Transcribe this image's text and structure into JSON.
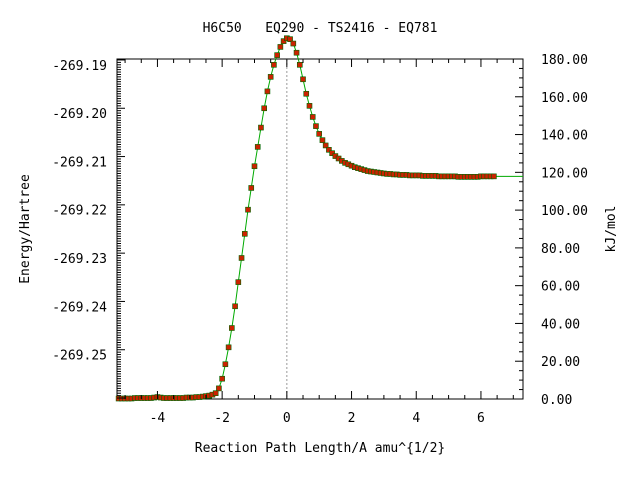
{
  "chart_data": {
    "type": "scatter",
    "title": "H6C50   EQ290 - TS2416 - EQ781",
    "xlabel": "Reaction Path Length/A amu^{1/2}",
    "ylabel": "Energy/Hartree",
    "y2label": "kJ/mol",
    "xlim": [
      -5.25,
      7.3
    ],
    "ylim": [
      -269.2592,
      -269.1888
    ],
    "y2lim": [
      0,
      180
    ],
    "xticks": [
      -4,
      -2,
      0,
      2,
      4,
      6
    ],
    "xtick_labels": [
      "-4",
      "-2",
      "0",
      "2",
      "4",
      "6"
    ],
    "yticks": [
      -269.19,
      -269.2,
      -269.21,
      -269.22,
      -269.23,
      -269.24,
      -269.25
    ],
    "ytick_labels": [
      "-269.19",
      "-269.20",
      "-269.21",
      "-269.22",
      "-269.23",
      "-269.24",
      "-269.25"
    ],
    "y2ticks": [
      0,
      20,
      40,
      60,
      80,
      100,
      120,
      140,
      160,
      180
    ],
    "y2tick_labels": [
      "0.00",
      "20.00",
      "40.00",
      "60.00",
      "80.00",
      "100.00",
      "120.00",
      "140.00",
      "160.00",
      "180.00"
    ],
    "ts_marker_x": 0,
    "grid": false,
    "legend": "none",
    "colors": {
      "points": "#cc2200",
      "line": "#00aa00",
      "ts_line": "#999999",
      "axis": "#000000"
    },
    "series": [
      {
        "values_x": [
          -5.2,
          -5.1,
          -5.0,
          -4.9,
          -4.8,
          -4.7,
          -4.6,
          -4.5,
          -4.4,
          -4.3,
          -4.2,
          -4.1,
          -4.0,
          -3.9,
          -3.8,
          -3.7,
          -3.6,
          -3.5,
          -3.4,
          -3.3,
          -3.2,
          -3.1,
          -3.0,
          -2.9,
          -2.8,
          -2.7,
          -2.6,
          -2.5,
          -2.4,
          -2.3,
          -2.2,
          -2.1,
          -2.0,
          -1.9,
          -1.8,
          -1.7,
          -1.6,
          -1.5,
          -1.4,
          -1.3,
          -1.2,
          -1.1,
          -1.0,
          -0.9,
          -0.8,
          -0.7,
          -0.6,
          -0.5,
          -0.4,
          -0.3,
          -0.2,
          -0.1,
          0.0,
          0.1,
          0.2,
          0.3,
          0.4,
          0.5,
          0.6,
          0.7,
          0.8,
          0.9,
          1.0,
          1.1,
          1.2,
          1.3,
          1.4,
          1.5,
          1.6,
          1.7,
          1.8,
          1.9,
          2.0,
          2.1,
          2.2,
          2.3,
          2.4,
          2.5,
          2.6,
          2.7,
          2.8,
          2.9,
          3.0,
          3.1,
          3.2,
          3.3,
          3.4,
          3.5,
          3.6,
          3.7,
          3.8,
          3.9,
          4.0,
          4.1,
          4.2,
          4.3,
          4.4,
          4.5,
          4.6,
          4.7,
          4.8,
          4.9,
          5.0,
          5.1,
          5.2,
          5.3,
          5.4,
          5.5,
          5.6,
          5.7,
          5.8,
          5.9,
          6.0,
          6.1,
          6.2,
          6.3,
          6.4
        ],
        "values_y": [
          -269.2591,
          -269.2591,
          -269.2591,
          -269.2591,
          -269.2591,
          -269.259,
          -269.259,
          -269.259,
          -269.259,
          -269.259,
          -269.259,
          -269.2589,
          -269.2588,
          -269.2589,
          -269.259,
          -269.259,
          -269.259,
          -269.259,
          -269.259,
          -269.259,
          -269.259,
          -269.2589,
          -269.2589,
          -269.2589,
          -269.2588,
          -269.2588,
          -269.2587,
          -269.2586,
          -269.2585,
          -269.2583,
          -269.258,
          -269.257,
          -269.255,
          -269.252,
          -269.2485,
          -269.2445,
          -269.24,
          -269.235,
          -269.23,
          -269.225,
          -269.22,
          -269.2155,
          -269.211,
          -269.207,
          -269.203,
          -269.199,
          -269.1955,
          -269.1925,
          -269.19,
          -269.188,
          -269.1863,
          -269.1851,
          -269.1845,
          -269.1847,
          -269.1856,
          -269.1875,
          -269.19,
          -269.193,
          -269.196,
          -269.1985,
          -269.2008,
          -269.2027,
          -269.2043,
          -269.2056,
          -269.2067,
          -269.2076,
          -269.2083,
          -269.2089,
          -269.2094,
          -269.2099,
          -269.2103,
          -269.2106,
          -269.2109,
          -269.2112,
          -269.2114,
          -269.2116,
          -269.2118,
          -269.212,
          -269.2121,
          -269.2122,
          -269.2123,
          -269.2124,
          -269.2125,
          -269.2126,
          -269.2126,
          -269.2127,
          -269.2127,
          -269.2128,
          -269.2128,
          -269.2128,
          -269.2129,
          -269.2129,
          -269.2129,
          -269.2129,
          -269.213,
          -269.213,
          -269.213,
          -269.213,
          -269.213,
          -269.2131,
          -269.2131,
          -269.2131,
          -269.2131,
          -269.2131,
          -269.2131,
          -269.2132,
          -269.2132,
          -269.2132,
          -269.2132,
          -269.2132,
          -269.2132,
          -269.2132,
          -269.2131,
          -269.2131,
          -269.2131,
          -269.2131,
          -269.2131
        ],
        "line_extends_to_x": 7.3,
        "line_end_y": -269.2131
      }
    ]
  }
}
